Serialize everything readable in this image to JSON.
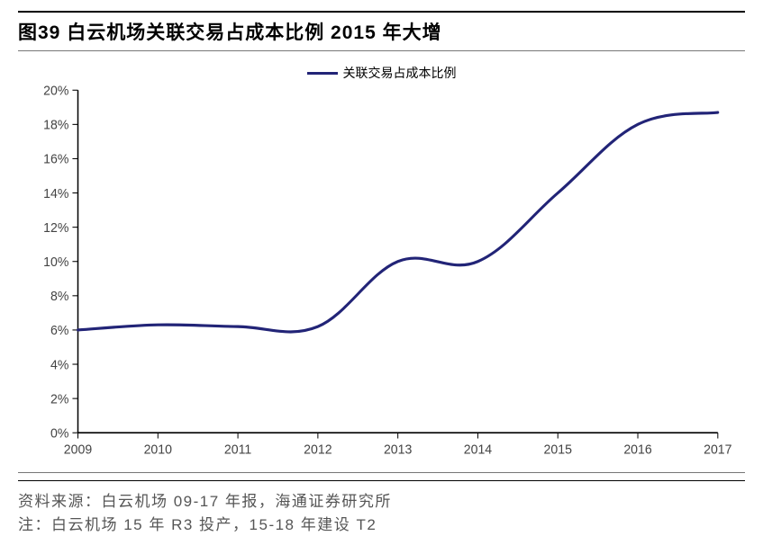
{
  "title": "图39 白云机场关联交易占成本比例 2015 年大增",
  "legend_label": "关联交易占成本比例",
  "source_line": "资料来源：白云机场 09-17 年报，海通证券研究所",
  "note_line": "注：白云机场 15 年 R3 投产，15-18 年建设 T2",
  "chart": {
    "type": "line",
    "series_color": "#222477",
    "axis_color": "#000000",
    "tick_text_color": "#444444",
    "background_color": "#ffffff",
    "line_width": 3,
    "ylim": [
      0,
      20
    ],
    "ytick_step": 2,
    "y_format": "pct",
    "y_ticks": [
      0,
      2,
      4,
      6,
      8,
      10,
      12,
      14,
      16,
      18,
      20
    ],
    "x_labels": [
      "2009",
      "2010",
      "2011",
      "2012",
      "2013",
      "2014",
      "2015",
      "2016",
      "2017"
    ],
    "values": [
      6.0,
      6.3,
      6.2,
      6.2,
      10.0,
      10.0,
      14.0,
      18.0,
      18.7
    ],
    "tick_fontsize": 14,
    "legend_fontsize": 14,
    "title_fontsize": 21
  }
}
